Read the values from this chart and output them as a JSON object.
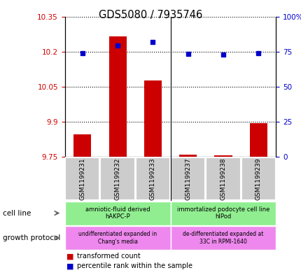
{
  "title": "GDS5080 / 7935746",
  "samples": [
    "GSM1199231",
    "GSM1199232",
    "GSM1199233",
    "GSM1199237",
    "GSM1199238",
    "GSM1199239"
  ],
  "transformed_count": [
    9.845,
    10.265,
    10.075,
    9.758,
    9.757,
    9.895
  ],
  "percentile_rank": [
    74.0,
    79.5,
    82.0,
    73.5,
    73.0,
    74.0
  ],
  "ylim_left": [
    9.75,
    10.35
  ],
  "ylim_right": [
    0,
    100
  ],
  "yticks_left": [
    9.75,
    9.9,
    10.05,
    10.2,
    10.35
  ],
  "yticks_left_labels": [
    "9.75",
    "9.9",
    "10.05",
    "10.2",
    "10.35"
  ],
  "yticks_right": [
    0,
    25,
    50,
    75,
    100
  ],
  "yticks_right_labels": [
    "0",
    "25",
    "50",
    "75",
    "100%"
  ],
  "bar_color": "#cc0000",
  "dot_color": "#0000cc",
  "bar_bottom": 9.75,
  "cell_line_labels": [
    "amniotic-fluid derived\nhAKPC-P",
    "immortalized podocyte cell line\nhIPod"
  ],
  "cell_line_color": "#90ee90",
  "growth_protocol_labels": [
    "undifferentiated expanded in\nChang's media",
    "de-differentiated expanded at\n33C in RPMI-1640"
  ],
  "growth_protocol_color": "#ee88ee",
  "tick_color_left": "#cc0000",
  "tick_color_right": "#0000cc",
  "label_bg_color": "#cccccc",
  "legend_bar_label": "transformed count",
  "legend_dot_label": "percentile rank within the sample"
}
